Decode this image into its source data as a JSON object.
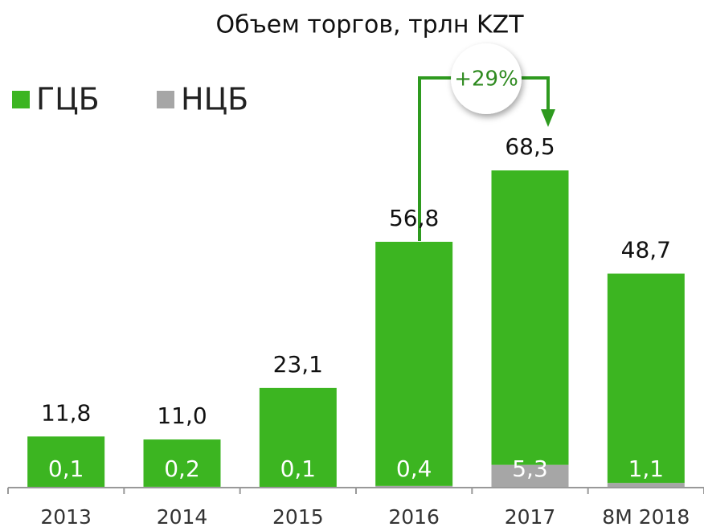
{
  "chart_data": {
    "type": "stacked_bar",
    "title": "Объем торгов, трлн KZT",
    "categories": [
      "2013",
      "2014",
      "2015",
      "2016",
      "2017",
      "8M 2018"
    ],
    "series": [
      {
        "name": "НЦБ",
        "color": "#a6a6a6",
        "values": [
          0.1,
          0.2,
          0.1,
          0.4,
          5.3,
          1.1
        ],
        "value_labels": [
          "0,1",
          "0,2",
          "0,1",
          "0,4",
          "5,3",
          "1,1"
        ]
      },
      {
        "name": "ГЦБ",
        "color": "#3cb521",
        "values": [
          11.8,
          11.0,
          23.1,
          56.8,
          68.5,
          48.7
        ],
        "value_labels": [
          "11,8",
          "11,0",
          "23,1",
          "56,8",
          "68,5",
          "48,7"
        ]
      }
    ],
    "ylim": [
      0,
      80
    ],
    "legend": "top-left",
    "annotation": "+29%"
  }
}
